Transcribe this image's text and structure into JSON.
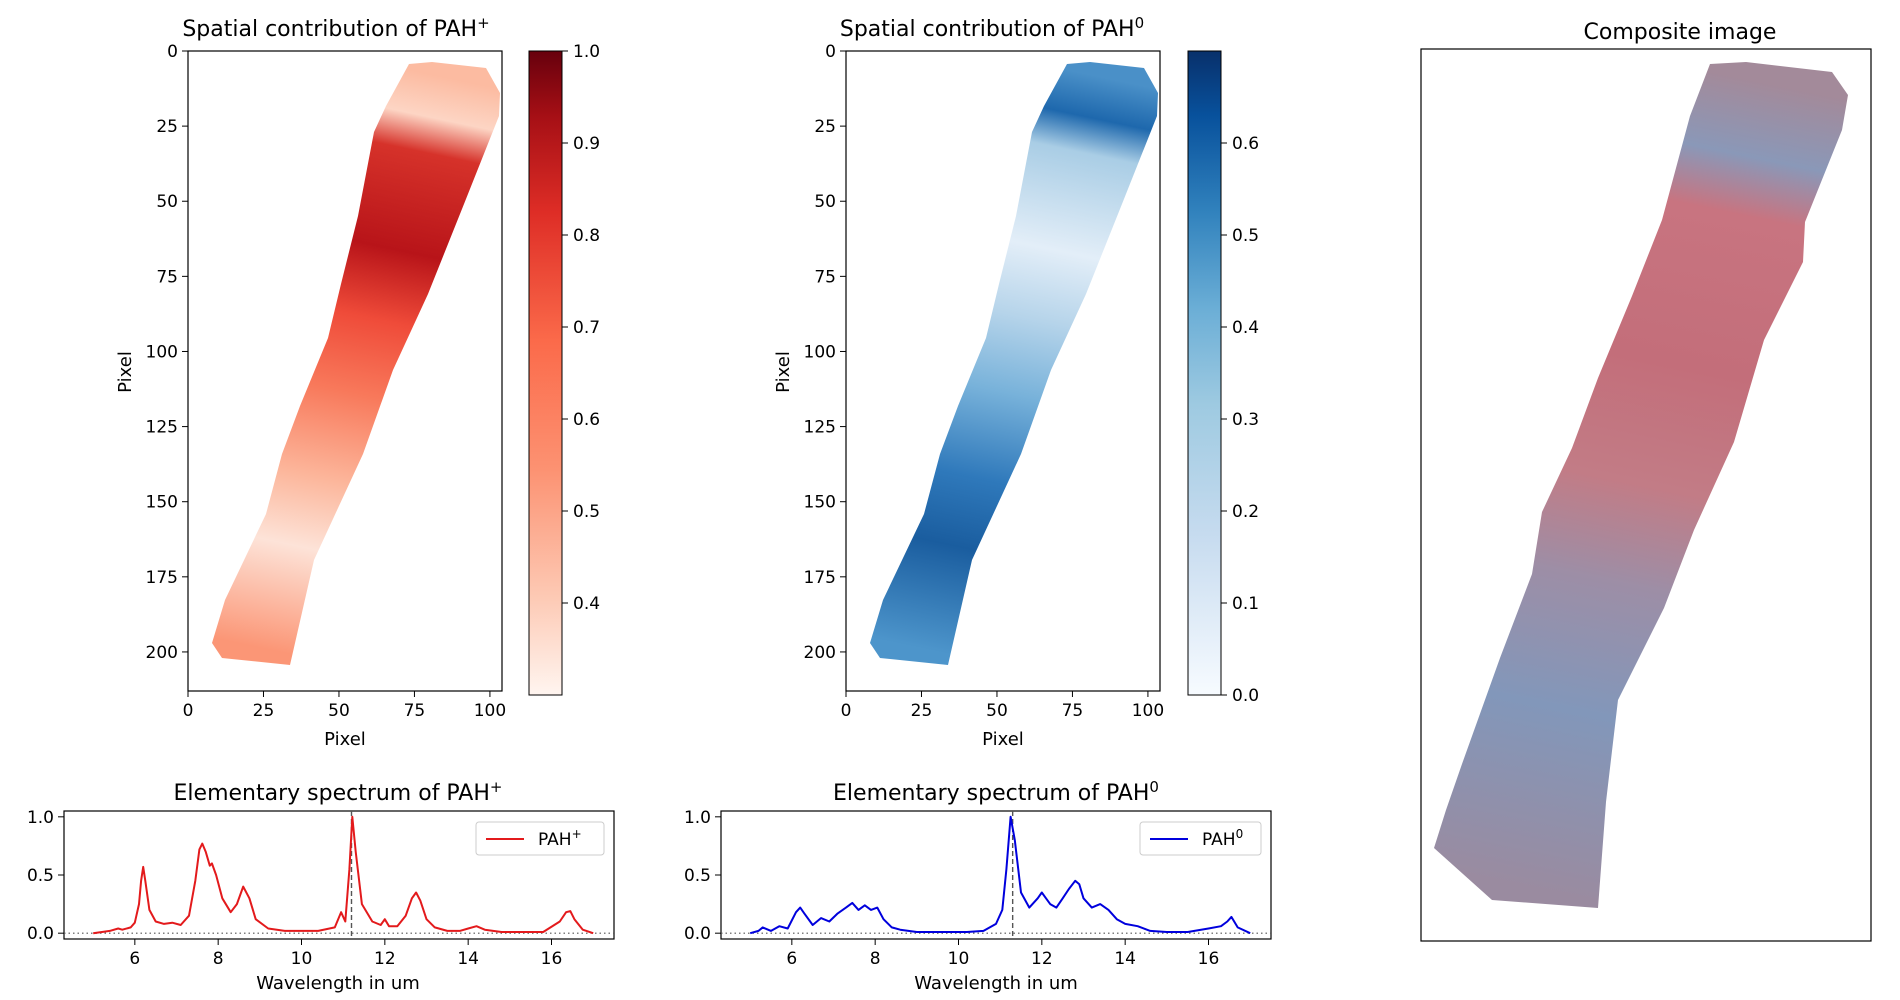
{
  "chart_data": [
    {
      "type": "heatmap",
      "title": "Spatial contribution of PAH",
      "title_sup": "+",
      "xlabel": "Pixel",
      "ylabel": "Pixel",
      "xlim": [
        0,
        104
      ],
      "ylim": [
        213,
        0
      ],
      "xticks": [
        "0",
        "25",
        "50",
        "75",
        "100"
      ],
      "yticks": [
        "0",
        "25",
        "50",
        "75",
        "100",
        "125",
        "150",
        "175",
        "200"
      ],
      "colormap": "Reds",
      "colorbar": {
        "min": 0.3,
        "max": 1.0,
        "ticks": [
          "0.4",
          "0.5",
          "0.6",
          "0.7",
          "0.8",
          "0.9",
          "1.0"
        ]
      },
      "colors": {
        "low": "#fff5f0",
        "mid": "#fb6a4a",
        "high": "#67000d"
      }
    },
    {
      "type": "heatmap",
      "title": "Spatial contribution of PAH",
      "title_sup": "0",
      "xlabel": "Pixel",
      "ylabel": "Pixel",
      "xlim": [
        0,
        104
      ],
      "ylim": [
        213,
        0
      ],
      "xticks": [
        "0",
        "25",
        "50",
        "75",
        "100"
      ],
      "yticks": [
        "0",
        "25",
        "50",
        "75",
        "100",
        "125",
        "150",
        "175",
        "200"
      ],
      "colormap": "Blues",
      "colorbar": {
        "min": 0.0,
        "max": 0.7,
        "ticks": [
          "0.0",
          "0.1",
          "0.2",
          "0.3",
          "0.4",
          "0.5",
          "0.6"
        ]
      },
      "colors": {
        "low": "#f7fbff",
        "mid": "#6baed6",
        "high": "#08306b"
      }
    },
    {
      "type": "heatmap",
      "title": "Composite image",
      "colors": {
        "red_tone": "#c8707a",
        "blue_tone": "#8094b4"
      }
    },
    {
      "type": "line",
      "title": "Elementary spectrum of PAH",
      "title_sup": "+",
      "xlabel": "Wavelength in um",
      "xlim": [
        4.3,
        17.5
      ],
      "ylim": [
        -0.05,
        1.05
      ],
      "xticks": [
        "6",
        "8",
        "10",
        "12",
        "14",
        "16"
      ],
      "yticks": [
        "0.0",
        "0.5",
        "1.0"
      ],
      "vline": 11.2,
      "legend": {
        "label": "PAH",
        "sup": "+",
        "position": "top-right"
      },
      "series": [
        {
          "color": "#e31a1c",
          "x": [
            5.0,
            5.4,
            5.6,
            5.7,
            5.9,
            6.0,
            6.1,
            6.15,
            6.2,
            6.25,
            6.35,
            6.5,
            6.7,
            6.9,
            7.1,
            7.3,
            7.45,
            7.55,
            7.62,
            7.7,
            7.8,
            7.85,
            7.95,
            8.1,
            8.3,
            8.45,
            8.6,
            8.75,
            8.9,
            9.2,
            9.6,
            10.0,
            10.4,
            10.8,
            10.95,
            11.05,
            11.15,
            11.22,
            11.3,
            11.45,
            11.7,
            11.9,
            12.0,
            12.1,
            12.3,
            12.5,
            12.65,
            12.75,
            12.85,
            13.0,
            13.2,
            13.5,
            13.8,
            14.0,
            14.2,
            14.4,
            14.8,
            15.3,
            15.8,
            16.2,
            16.35,
            16.45,
            16.55,
            16.75,
            17.0
          ],
          "y": [
            0.0,
            0.02,
            0.04,
            0.03,
            0.05,
            0.09,
            0.25,
            0.45,
            0.57,
            0.45,
            0.2,
            0.1,
            0.08,
            0.09,
            0.07,
            0.15,
            0.45,
            0.72,
            0.77,
            0.7,
            0.58,
            0.6,
            0.5,
            0.3,
            0.18,
            0.25,
            0.4,
            0.3,
            0.12,
            0.04,
            0.02,
            0.02,
            0.02,
            0.05,
            0.18,
            0.1,
            0.55,
            1.0,
            0.7,
            0.25,
            0.1,
            0.07,
            0.12,
            0.06,
            0.06,
            0.15,
            0.3,
            0.35,
            0.28,
            0.12,
            0.05,
            0.02,
            0.02,
            0.04,
            0.06,
            0.03,
            0.01,
            0.01,
            0.01,
            0.1,
            0.18,
            0.19,
            0.12,
            0.03,
            0.0
          ]
        }
      ]
    },
    {
      "type": "line",
      "title": "Elementary spectrum of PAH",
      "title_sup": "0",
      "xlabel": "Wavelength in um",
      "xlim": [
        4.3,
        17.5
      ],
      "ylim": [
        -0.05,
        1.05
      ],
      "xticks": [
        "6",
        "8",
        "10",
        "12",
        "14",
        "16"
      ],
      "yticks": [
        "0.0",
        "0.5",
        "1.0"
      ],
      "vline": 11.3,
      "legend": {
        "label": "PAH",
        "sup": "0",
        "position": "top-right"
      },
      "series": [
        {
          "color": "#0000dd",
          "x": [
            5.0,
            5.2,
            5.3,
            5.5,
            5.7,
            5.9,
            6.1,
            6.2,
            6.3,
            6.5,
            6.7,
            6.9,
            7.1,
            7.3,
            7.45,
            7.6,
            7.75,
            7.9,
            8.05,
            8.2,
            8.4,
            8.6,
            8.8,
            9.0,
            9.4,
            9.8,
            10.2,
            10.6,
            10.9,
            11.05,
            11.15,
            11.25,
            11.35,
            11.5,
            11.7,
            11.9,
            12.0,
            12.1,
            12.2,
            12.35,
            12.5,
            12.65,
            12.8,
            12.9,
            13.0,
            13.2,
            13.4,
            13.6,
            13.8,
            14.0,
            14.3,
            14.6,
            15.0,
            15.5,
            16.0,
            16.3,
            16.45,
            16.55,
            16.7,
            17.0
          ],
          "y": [
            0.0,
            0.02,
            0.05,
            0.02,
            0.06,
            0.04,
            0.18,
            0.22,
            0.17,
            0.07,
            0.13,
            0.1,
            0.17,
            0.22,
            0.26,
            0.2,
            0.24,
            0.2,
            0.22,
            0.12,
            0.05,
            0.03,
            0.02,
            0.01,
            0.01,
            0.01,
            0.01,
            0.02,
            0.08,
            0.2,
            0.55,
            1.0,
            0.8,
            0.35,
            0.22,
            0.3,
            0.35,
            0.3,
            0.25,
            0.22,
            0.3,
            0.38,
            0.45,
            0.42,
            0.3,
            0.22,
            0.25,
            0.2,
            0.12,
            0.08,
            0.06,
            0.02,
            0.01,
            0.01,
            0.04,
            0.06,
            0.1,
            0.14,
            0.05,
            0.0
          ]
        }
      ]
    }
  ]
}
